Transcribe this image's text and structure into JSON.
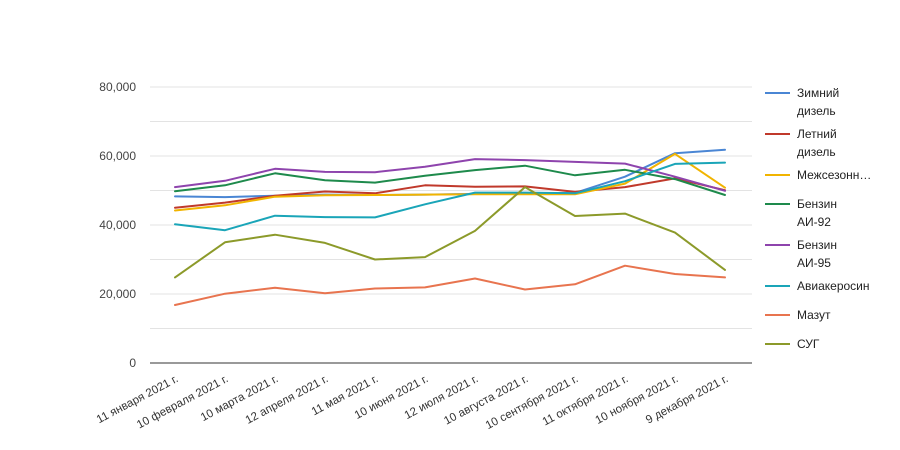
{
  "chart_data": {
    "type": "line",
    "title": "",
    "xlabel": "",
    "ylabel": "",
    "ylim": [
      0,
      80000
    ],
    "yticks": [
      "0",
      "20,000",
      "40,000",
      "60,000",
      "80,000"
    ],
    "ytick_values": [
      0,
      20000,
      40000,
      60000,
      80000
    ],
    "grid": true,
    "legend_position": "right",
    "categories": [
      "11 января 2021 г.",
      "10 февраля 2021 г.",
      "10 марта 2021 г.",
      "12 апреля 2021 г.",
      "11 мая 2021 г.",
      "10 июня 2021 г.",
      "12 июля 2021 г.",
      "10 августа 2021 г.",
      "10 сентября 2021 г.",
      "11 октября 2021 г.",
      "10 ноября 2021 г.",
      "9 декабря 2021 г."
    ],
    "series": [
      {
        "name": "Зимний дизель",
        "legend_lines": [
          "Зимний",
          "дизель"
        ],
        "color": "#4a86d4",
        "values": [
          48300,
          48100,
          48500,
          48800,
          48700,
          48800,
          49000,
          49200,
          49300,
          54000,
          60800,
          61800
        ]
      },
      {
        "name": "Летний дизель",
        "legend_lines": [
          "Летний",
          "дизель"
        ],
        "color": "#c0392b",
        "values": [
          45000,
          46500,
          48500,
          49700,
          49200,
          51500,
          51100,
          51200,
          49600,
          51000,
          53500,
          50100
        ]
      },
      {
        "name": "Межсезонн…",
        "legend_lines": [
          "Межсезонн…"
        ],
        "color": "#f1b400",
        "values": [
          44200,
          45700,
          48200,
          48600,
          48700,
          48800,
          48900,
          48900,
          48900,
          52000,
          60600,
          50800
        ]
      },
      {
        "name": "Бензин АИ-92",
        "legend_lines": [
          "Бензин",
          "АИ-92"
        ],
        "color": "#1e8a4c",
        "values": [
          49800,
          51500,
          55000,
          53000,
          52300,
          54300,
          55900,
          57200,
          54400,
          56000,
          53300,
          48700
        ]
      },
      {
        "name": "Бензин АИ-95",
        "legend_lines": [
          "Бензин",
          "АИ-95"
        ],
        "color": "#8e44ad",
        "values": [
          51000,
          52800,
          56300,
          55400,
          55300,
          56900,
          59100,
          58800,
          58300,
          57800,
          54000,
          49900
        ]
      },
      {
        "name": "Авиакеросин",
        "legend_lines": [
          "Авиакеросин"
        ],
        "color": "#1aa5b8",
        "values": [
          40200,
          38500,
          42700,
          42300,
          42200,
          46000,
          49400,
          49400,
          49200,
          52700,
          57700,
          58100
        ]
      },
      {
        "name": "Мазут",
        "legend_lines": [
          "Мазут"
        ],
        "color": "#e8744f",
        "values": [
          16800,
          20100,
          21800,
          20200,
          21600,
          21900,
          24500,
          21300,
          22800,
          28200,
          25800,
          24800
        ]
      },
      {
        "name": "СУГ",
        "legend_lines": [
          "СУГ"
        ],
        "color": "#8c9a2a",
        "values": [
          24800,
          35000,
          37200,
          34800,
          30000,
          30700,
          38300,
          51000,
          42600,
          43300,
          37800,
          27000
        ]
      }
    ]
  }
}
